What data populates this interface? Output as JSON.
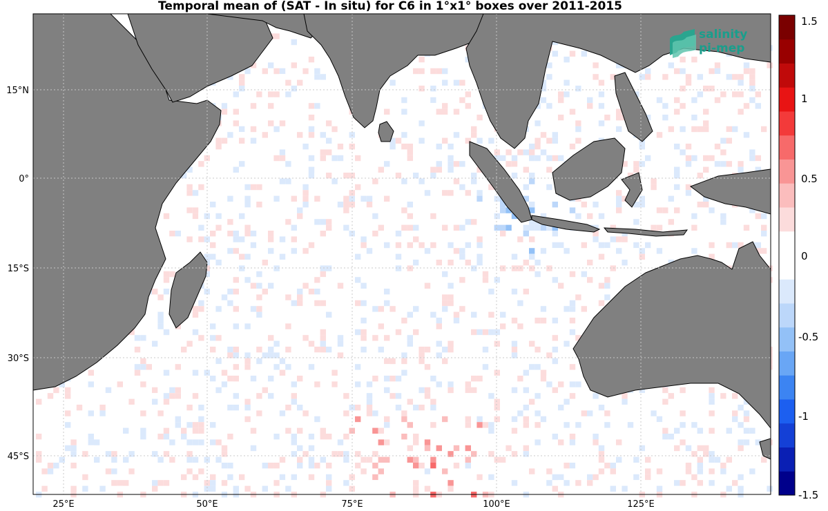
{
  "title": "Temporal mean of (SAT - In situ) for C6 in 1°x1° boxes over 2011-2015",
  "logo": {
    "line1": "salinity",
    "line2": "pi-mep"
  },
  "map": {
    "lon_ticks": [
      "25°E",
      "50°E",
      "75°E",
      "100°E",
      "125°E"
    ],
    "lat_ticks": [
      "15°N",
      "0°",
      "15°S",
      "30°S",
      "45°S"
    ]
  },
  "colorbar": {
    "ticks": [
      "1.5",
      "1",
      "0.5",
      "0",
      "-0.5",
      "-1",
      "-1.5"
    ],
    "range": [
      -1.5,
      1.5
    ],
    "colors": [
      "#00008b",
      "#0a1fb4",
      "#1440d6",
      "#1c5ff0",
      "#3c84f2",
      "#69a6f5",
      "#93c1f7",
      "#bcd7fa",
      "#dbe9fc",
      "#ffffff",
      "#ffffff",
      "#fcdcdc",
      "#fbbdbd",
      "#f99595",
      "#f76a6a",
      "#f33a3a",
      "#e81414",
      "#c00a0a",
      "#990000",
      "#7a0000"
    ]
  },
  "colors": {
    "land": "#808080",
    "coast": "#000000",
    "grid": "#c8c8c8"
  }
}
